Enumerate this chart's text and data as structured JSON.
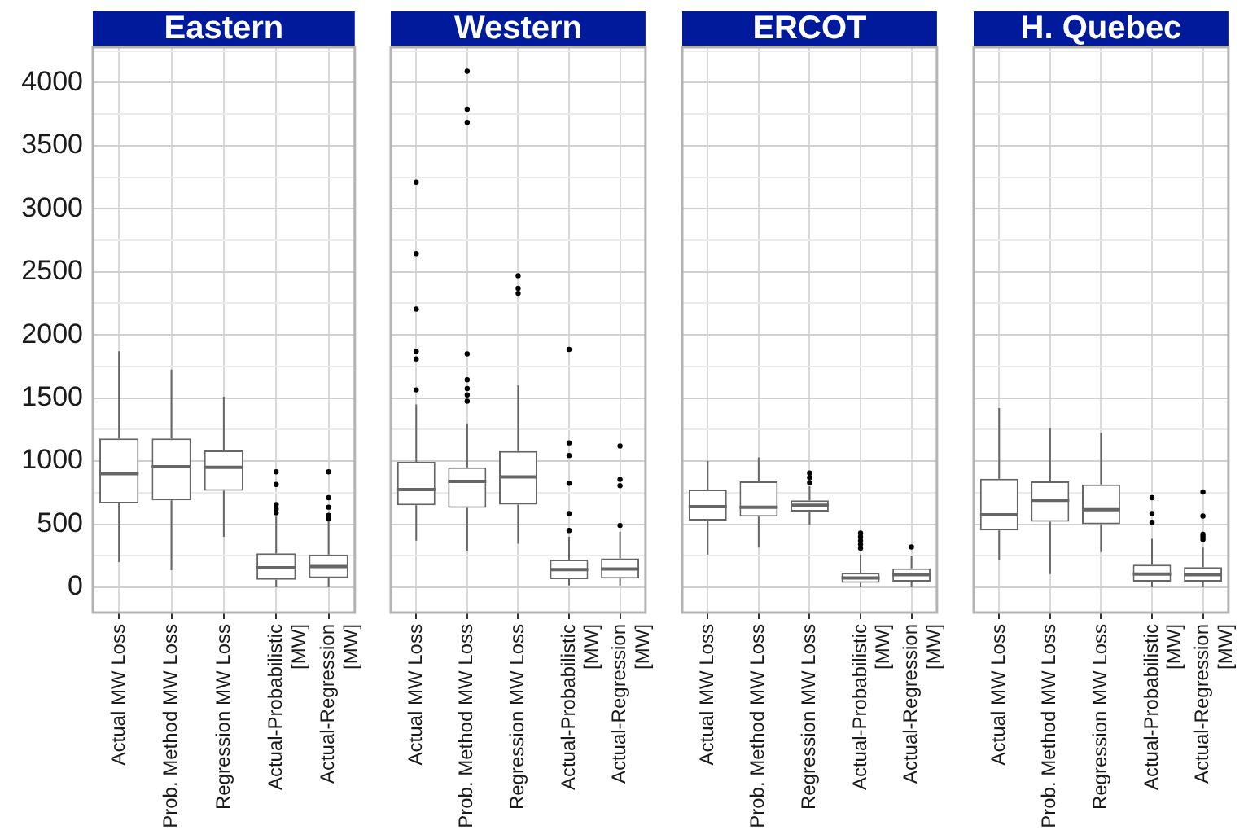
{
  "chart_data": [
    {
      "type": "box",
      "title": "Eastern",
      "color": "#666666",
      "marker": "circle",
      "grid": true,
      "categories": [
        "Actual MW Loss",
        "Prob. Method MW Loss",
        "Regression MW Loss",
        "Actual-Probabilistic\n[MW]",
        "Actual-Regression\n[MW]"
      ],
      "ylim": [
        -200,
        4280
      ],
      "yticks": [
        0,
        {
          "value": 250,
          "label": null
        },
        500,
        {
          "value": 750,
          "label": null
        },
        1000,
        {
          "value": 1250,
          "label": null
        },
        1500,
        {
          "value": 1750,
          "label": null
        },
        2000,
        {
          "value": 2250,
          "label": null
        },
        2500,
        {
          "value": 2750,
          "label": null
        },
        3000,
        {
          "value": 3250,
          "label": null
        },
        3500,
        {
          "value": 3750,
          "label": null
        },
        4000,
        {
          "value": 4250,
          "label": null
        }
      ],
      "boxes": [
        {
          "low": 200,
          "q1": 665,
          "median": 900,
          "q3": 1180,
          "high": 1870
        },
        {
          "low": 135,
          "q1": 690,
          "median": 955,
          "q3": 1180,
          "high": 1725
        },
        {
          "low": 400,
          "q1": 765,
          "median": 950,
          "q3": 1085,
          "high": 1510
        },
        {
          "low": 0,
          "q1": 60,
          "median": 155,
          "q3": 270,
          "high": 560,
          "outliers": [
            915,
            815,
            655,
            620,
            590
          ]
        },
        {
          "low": 0,
          "q1": 75,
          "median": 165,
          "q3": 260,
          "high": 520,
          "outliers": [
            915,
            710,
            635,
            570,
            540
          ]
        }
      ]
    },
    {
      "type": "box",
      "title": "Western",
      "color": "#666666",
      "marker": "circle",
      "grid": true,
      "tick_labels": "x",
      "categories": [
        "Actual MW Loss",
        "Prob. Method MW Loss",
        "Regression MW Loss",
        "Actual-Probabilistic\n[MW]",
        "Actual-Regression\n[MW]"
      ],
      "ylim": [
        -200,
        4280
      ],
      "yticks": [
        0,
        {
          "value": 250,
          "label": null
        },
        500,
        {
          "value": 750,
          "label": null
        },
        1000,
        {
          "value": 1250,
          "label": null
        },
        1500,
        {
          "value": 1750,
          "label": null
        },
        2000,
        {
          "value": 2250,
          "label": null
        },
        2500,
        {
          "value": 2750,
          "label": null
        },
        3000,
        {
          "value": 3250,
          "label": null
        },
        3500,
        {
          "value": 3750,
          "label": null
        },
        4000,
        {
          "value": 4250,
          "label": null
        }
      ],
      "boxes": [
        {
          "low": 370,
          "q1": 650,
          "median": 775,
          "q3": 995,
          "high": 1450,
          "outliers": [
            3210,
            2645,
            2205,
            1870,
            1810,
            1565
          ]
        },
        {
          "low": 290,
          "q1": 630,
          "median": 840,
          "q3": 950,
          "high": 1300,
          "outliers": [
            4090,
            3790,
            3685,
            1850,
            1645,
            1575,
            1525,
            1475
          ]
        },
        {
          "low": 345,
          "q1": 655,
          "median": 875,
          "q3": 1080,
          "high": 1600,
          "outliers": [
            2470,
            2370,
            2330
          ]
        },
        {
          "low": 15,
          "q1": 65,
          "median": 140,
          "q3": 220,
          "high": 400,
          "outliers": [
            1885,
            1145,
            1045,
            825,
            585,
            450
          ]
        },
        {
          "low": 15,
          "q1": 70,
          "median": 145,
          "q3": 230,
          "high": 440,
          "outliers": [
            1120,
            855,
            805,
            490
          ]
        }
      ]
    },
    {
      "type": "box",
      "title": "ERCOT",
      "color": "#666666",
      "marker": "circle",
      "grid": true,
      "tick_labels": "x",
      "categories": [
        "Actual MW Loss",
        "Prob. Method MW Loss",
        "Regression MW Loss",
        "Actual-Probabilistic\n[MW]",
        "Actual-Regression\n[MW]"
      ],
      "ylim": [
        -200,
        4280
      ],
      "yticks": [
        0,
        {
          "value": 250,
          "label": null
        },
        500,
        {
          "value": 750,
          "label": null
        },
        1000,
        {
          "value": 1250,
          "label": null
        },
        1500,
        {
          "value": 1750,
          "label": null
        },
        2000,
        {
          "value": 2250,
          "label": null
        },
        2500,
        {
          "value": 2750,
          "label": null
        },
        3000,
        {
          "value": 3250,
          "label": null
        },
        3500,
        {
          "value": 3750,
          "label": null
        },
        4000,
        {
          "value": 4250,
          "label": null
        }
      ],
      "boxes": [
        {
          "low": 260,
          "q1": 530,
          "median": 640,
          "q3": 775,
          "high": 1000
        },
        {
          "low": 315,
          "q1": 560,
          "median": 635,
          "q3": 840,
          "high": 1030
        },
        {
          "low": 495,
          "q1": 600,
          "median": 650,
          "q3": 690,
          "high": 800,
          "outliers": [
            905,
            870,
            830
          ]
        },
        {
          "low": 0,
          "q1": 35,
          "median": 75,
          "q3": 115,
          "high": 260,
          "outliers": [
            430,
            400,
            370,
            340,
            310
          ]
        },
        {
          "low": 0,
          "q1": 45,
          "median": 100,
          "q3": 150,
          "high": 250,
          "outliers": [
            320
          ]
        }
      ]
    },
    {
      "type": "box",
      "title": "H. Quebec",
      "color": "#666666",
      "marker": "circle",
      "grid": true,
      "tick_labels": "x",
      "categories": [
        "Actual MW Loss",
        "Prob. Method MW Loss",
        "Regression MW Loss",
        "Actual-Probabilistic\n[MW]",
        "Actual-Regression\n[MW]"
      ],
      "ylim": [
        -200,
        4280
      ],
      "yticks": [
        0,
        {
          "value": 250,
          "label": null
        },
        500,
        {
          "value": 750,
          "label": null
        },
        1000,
        {
          "value": 1250,
          "label": null
        },
        1500,
        {
          "value": 1750,
          "label": null
        },
        2000,
        {
          "value": 2250,
          "label": null
        },
        2500,
        {
          "value": 2750,
          "label": null
        },
        3000,
        {
          "value": 3250,
          "label": null
        },
        3500,
        {
          "value": 3750,
          "label": null
        },
        4000,
        {
          "value": 4250,
          "label": null
        }
      ],
      "boxes": [
        {
          "low": 215,
          "q1": 450,
          "median": 575,
          "q3": 860,
          "high": 1420
        },
        {
          "low": 105,
          "q1": 520,
          "median": 690,
          "q3": 840,
          "high": 1260
        },
        {
          "low": 280,
          "q1": 500,
          "median": 615,
          "q3": 815,
          "high": 1225
        },
        {
          "low": 0,
          "q1": 45,
          "median": 105,
          "q3": 180,
          "high": 385,
          "outliers": [
            710,
            585,
            515
          ]
        },
        {
          "low": 0,
          "q1": 45,
          "median": 100,
          "q3": 160,
          "high": 315,
          "outliers": [
            755,
            565,
            420,
            400,
            380
          ]
        }
      ]
    }
  ]
}
